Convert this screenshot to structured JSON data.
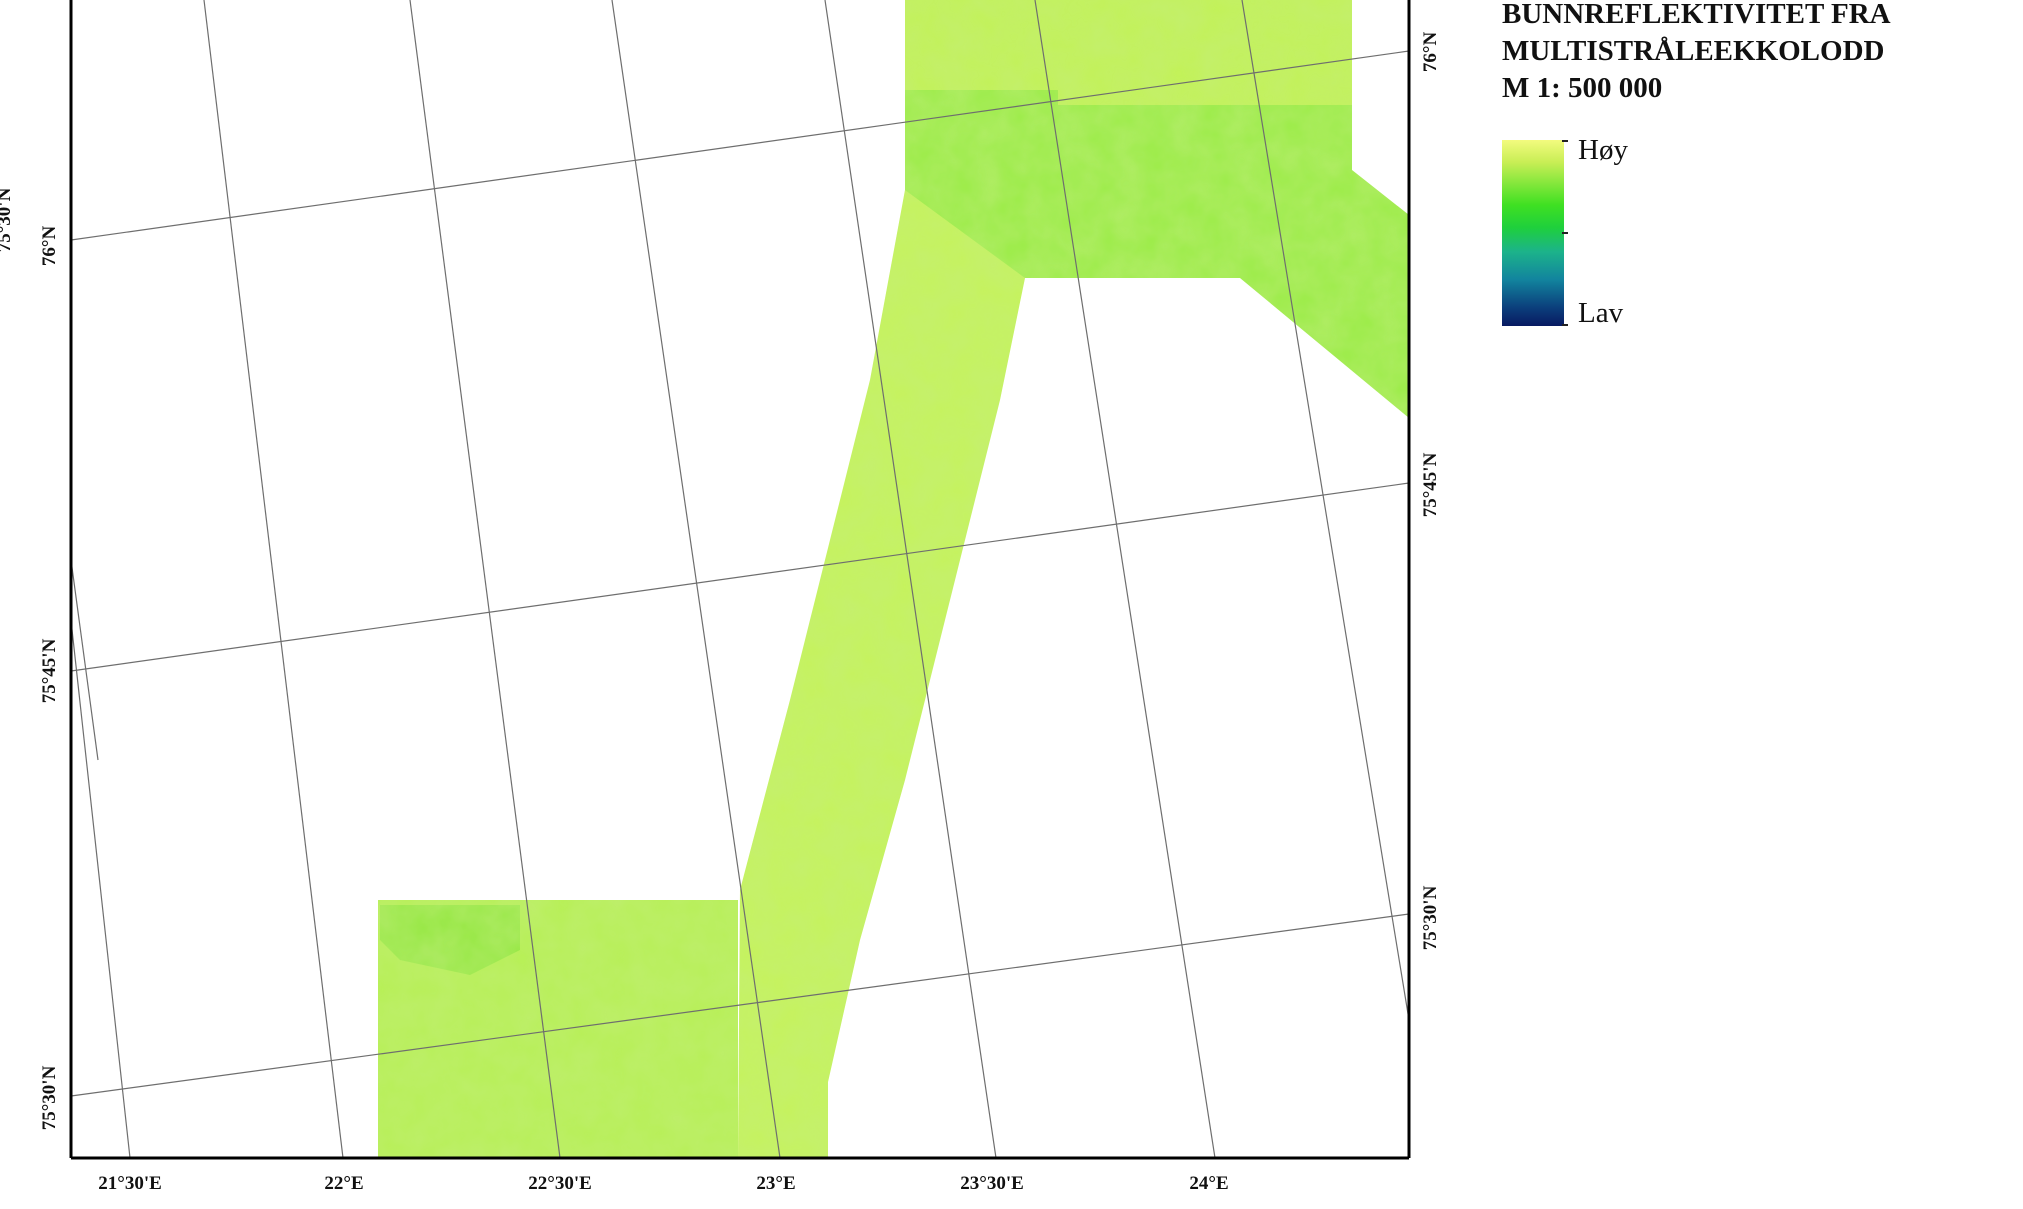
{
  "map": {
    "frame_color": "#000000",
    "grid_color": "#6e6e6e",
    "swath_colors": {
      "light": "#c3f25a",
      "mid": "#a8ee4c",
      "dark": "#8fe841"
    },
    "longitude_labels": [
      "21°30'E",
      "22°E",
      "22°30'E",
      "23°E",
      "23°30'E",
      "24°E"
    ],
    "latitude_labels_left": [
      "75°30'N",
      "75°45'N",
      "76°N",
      "75°30'N"
    ],
    "latitude_labels_right": [
      "75°30'N",
      "75°45'N",
      "76°N"
    ]
  },
  "legend": {
    "title_lines": [
      "BUNNREFLEKTIVITET FRA",
      "MULTISTRÅLEEKKOLODD",
      "M 1: 500 000"
    ],
    "high_label": "Høy",
    "low_label": "Lav",
    "gradient_colors": [
      "#f3fb7e",
      "#3fe022",
      "#1cb38a",
      "#081a62"
    ]
  }
}
